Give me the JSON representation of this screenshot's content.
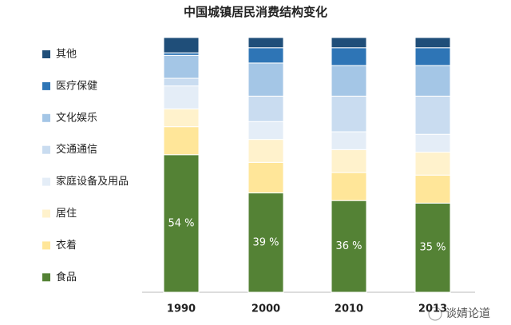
{
  "chart_data": {
    "type": "stacked_bar",
    "title": "中国城镇居民消费结构变化",
    "categories": [
      "1990",
      "2000",
      "2010",
      "2013"
    ],
    "ylim": [
      0,
      100
    ],
    "series": [
      {
        "name": "食品",
        "color": "#548235",
        "values": [
          54,
          39,
          36,
          35
        ],
        "value_labels": [
          "54 %",
          "39 %",
          "36 %",
          "35 %"
        ]
      },
      {
        "name": "衣着",
        "color": "#ffe699",
        "values": [
          11,
          12,
          11,
          11
        ]
      },
      {
        "name": "居住",
        "color": "#fff2cc",
        "values": [
          7,
          9,
          9,
          9
        ]
      },
      {
        "name": "家庭设备及用品",
        "color": "#e4edf7",
        "values": [
          9,
          7,
          7,
          7
        ]
      },
      {
        "name": "交通通信",
        "color": "#c9dcf0",
        "values": [
          3,
          10,
          14,
          15
        ]
      },
      {
        "name": "文化娱乐",
        "color": "#a4c6e6",
        "values": [
          9,
          13,
          12,
          12
        ]
      },
      {
        "name": "医疗保健",
        "color": "#2e75b6",
        "values": [
          1,
          6,
          7,
          7
        ]
      },
      {
        "name": "其他",
        "color": "#1f4e79",
        "values": [
          6,
          4,
          4,
          4
        ]
      }
    ]
  },
  "watermark": "谈婧论道"
}
